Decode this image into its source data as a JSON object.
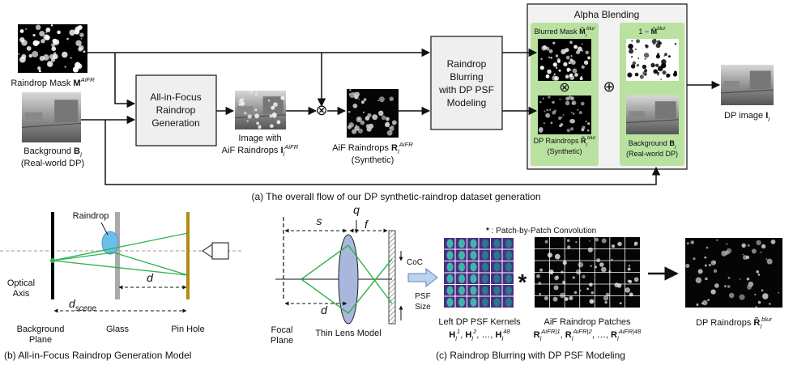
{
  "top": {
    "mask_label": [
      {
        "t": "Raindrop Mask "
      },
      {
        "b": "M"
      },
      {
        "sup": "AiFR"
      }
    ],
    "background_label": [
      {
        "t": "Background "
      },
      {
        "b": "B"
      },
      {
        "sub": "l"
      }
    ],
    "background_note": "(Real-world DP)",
    "aif_box": [
      "All-in-Focus",
      "Raindrop",
      "Generation"
    ],
    "image_label": "Image with",
    "image_label2": [
      {
        "t": "AiF Raindrops "
      },
      {
        "b": "I"
      },
      {
        "sub": "l"
      },
      {
        "sup": "AiFR"
      }
    ],
    "multiply": "⊗",
    "aif_label": [
      {
        "t": "AiF Raindrops "
      },
      {
        "b": "R"
      },
      {
        "sub": "l"
      },
      {
        "sup": "AiFR"
      }
    ],
    "aif_note": "(Synthetic)",
    "blur_box": [
      "Raindrop",
      "Blurring",
      "with DP PSF",
      "Modeling"
    ],
    "alpha": {
      "title": "Alpha Blending",
      "mask_label": [
        {
          "t": "Blurred Mask "
        },
        {
          "b": "M̃"
        },
        {
          "sub": "l"
        },
        {
          "sup": "blur"
        }
      ],
      "multiply": "⊗",
      "plus": "⊕",
      "raindrops_label": [
        {
          "t": "DP Raindrops "
        },
        {
          "b": "R̃"
        },
        {
          "sub": "l"
        },
        {
          "sup": "blur"
        }
      ],
      "raindrops_note": "(Synthetic)",
      "inv_label": [
        {
          "t": "1 − "
        },
        {
          "b": "M̃"
        },
        {
          "sup": "blur"
        }
      ],
      "bg_label": [
        {
          "t": "Background "
        },
        {
          "b": "B"
        },
        {
          "sub": "l"
        }
      ],
      "bg_note": "(Real-world DP)"
    },
    "output_label": [
      {
        "t": "DP image "
      },
      {
        "b": "I"
      },
      {
        "sub": "l"
      }
    ],
    "caption": "(a) The overall flow of our DP synthetic-raindrop dataset generation"
  },
  "model_b": {
    "raindrop": "Raindrop",
    "optical": [
      "Optical",
      "Axis"
    ],
    "d": "d",
    "d_scene": [
      {
        "i": "d"
      },
      {
        "sub": "scene"
      }
    ],
    "background": [
      "Background",
      "Plane"
    ],
    "glass": "Glass",
    "pinhole": "Pin Hole",
    "caption": "(b) All-in-Focus Raindrop Generation Model"
  },
  "model_c": {
    "s": "s",
    "q": "q",
    "f": "f",
    "d": "d",
    "coc": "CoC",
    "psf": [
      "PSF",
      "Size"
    ],
    "focal": [
      "Focal",
      "Plane"
    ],
    "lens": "Thin Lens Model",
    "conv_note": [
      {
        "b": "*"
      },
      {
        "t": " : Patch-by-Patch Convolution"
      }
    ],
    "conv": "*",
    "kernels_label": "Left DP PSF Kernels",
    "kernels_math": [
      {
        "b": "H"
      },
      {
        "sub": "l"
      },
      {
        "sup": "1"
      },
      {
        "t": ", "
      },
      {
        "b": "H"
      },
      {
        "sub": "l"
      },
      {
        "sup": "2"
      },
      {
        "t": ", …, "
      },
      {
        "b": "H"
      },
      {
        "sub": "l"
      },
      {
        "sup": "48"
      }
    ],
    "patches_label": "AiF Raindrop Patches",
    "patches_math": [
      {
        "b": "R"
      },
      {
        "sub": "l"
      },
      {
        "sup": "AiFR|1"
      },
      {
        "t": ", "
      },
      {
        "b": "R"
      },
      {
        "sub": "l"
      },
      {
        "sup": "AiFR|2"
      },
      {
        "t": ", …, "
      },
      {
        "b": "R"
      },
      {
        "sub": "l"
      },
      {
        "sup": "AiFR|48"
      }
    ],
    "output_label": [
      {
        "t": "DP Raindrops "
      },
      {
        "b": "R̃"
      },
      {
        "sub": "l"
      },
      {
        "sup": "blur"
      }
    ],
    "caption": "(c) Raindrop Blurring with DP PSF Modeling"
  }
}
